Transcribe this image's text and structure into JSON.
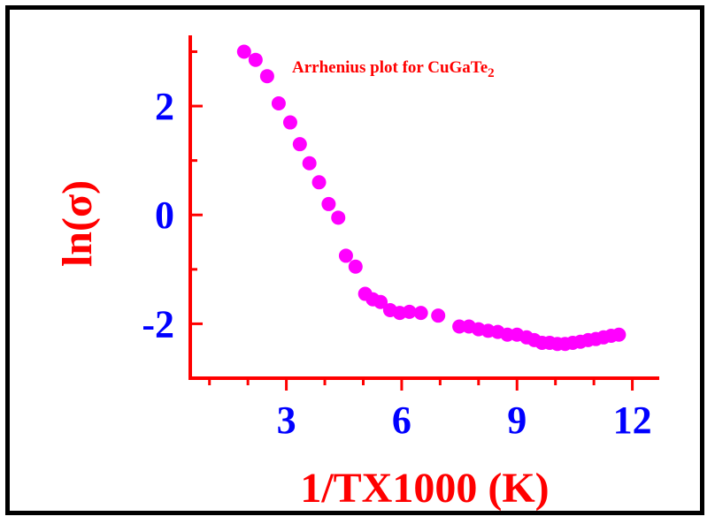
{
  "chart_data": {
    "type": "scatter",
    "title": "Arrhenius plot for CuGaTe",
    "title_subscript": "2",
    "xlabel": "1/TX1000 (K)",
    "ylabel": "ln(σ)",
    "xlim": [
      0.5,
      12.7
    ],
    "ylim": [
      -3.0,
      3.3
    ],
    "xticks": [
      3,
      6,
      9,
      12
    ],
    "xtick_labels": [
      "3",
      "6",
      "9",
      "12"
    ],
    "yticks": [
      -2,
      0,
      2
    ],
    "ytick_labels": [
      "-2",
      "0",
      "2"
    ],
    "grid": false,
    "legend": "none",
    "series": [
      {
        "x": [
          1.9,
          2.2,
          2.5,
          2.8,
          3.1,
          3.35,
          3.6,
          3.85,
          4.1,
          4.35,
          4.55,
          4.8,
          5.05,
          5.25,
          5.45,
          5.7,
          5.95,
          6.2,
          6.5,
          6.95,
          7.5,
          7.75,
          8.0,
          8.25,
          8.5,
          8.75,
          9.0,
          9.25,
          9.45,
          9.65,
          9.85,
          10.05,
          10.25,
          10.45,
          10.65,
          10.85,
          11.05,
          11.25,
          11.45,
          11.65
        ],
        "y": [
          3.0,
          2.85,
          2.55,
          2.05,
          1.7,
          1.3,
          0.95,
          0.6,
          0.2,
          -0.05,
          -0.75,
          -0.95,
          -1.45,
          -1.55,
          -1.6,
          -1.75,
          -1.8,
          -1.78,
          -1.8,
          -1.85,
          -2.05,
          -2.05,
          -2.1,
          -2.13,
          -2.15,
          -2.2,
          -2.2,
          -2.25,
          -2.3,
          -2.35,
          -2.35,
          -2.37,
          -2.37,
          -2.35,
          -2.33,
          -2.3,
          -2.28,
          -2.25,
          -2.22,
          -2.2
        ]
      }
    ],
    "colors": {
      "marker": "#ff00ff",
      "axis": "#ff0000",
      "axis_title": "#ff0000",
      "tick_label": "#0000ff",
      "title": "#ff0000",
      "frame": "#000000"
    }
  }
}
